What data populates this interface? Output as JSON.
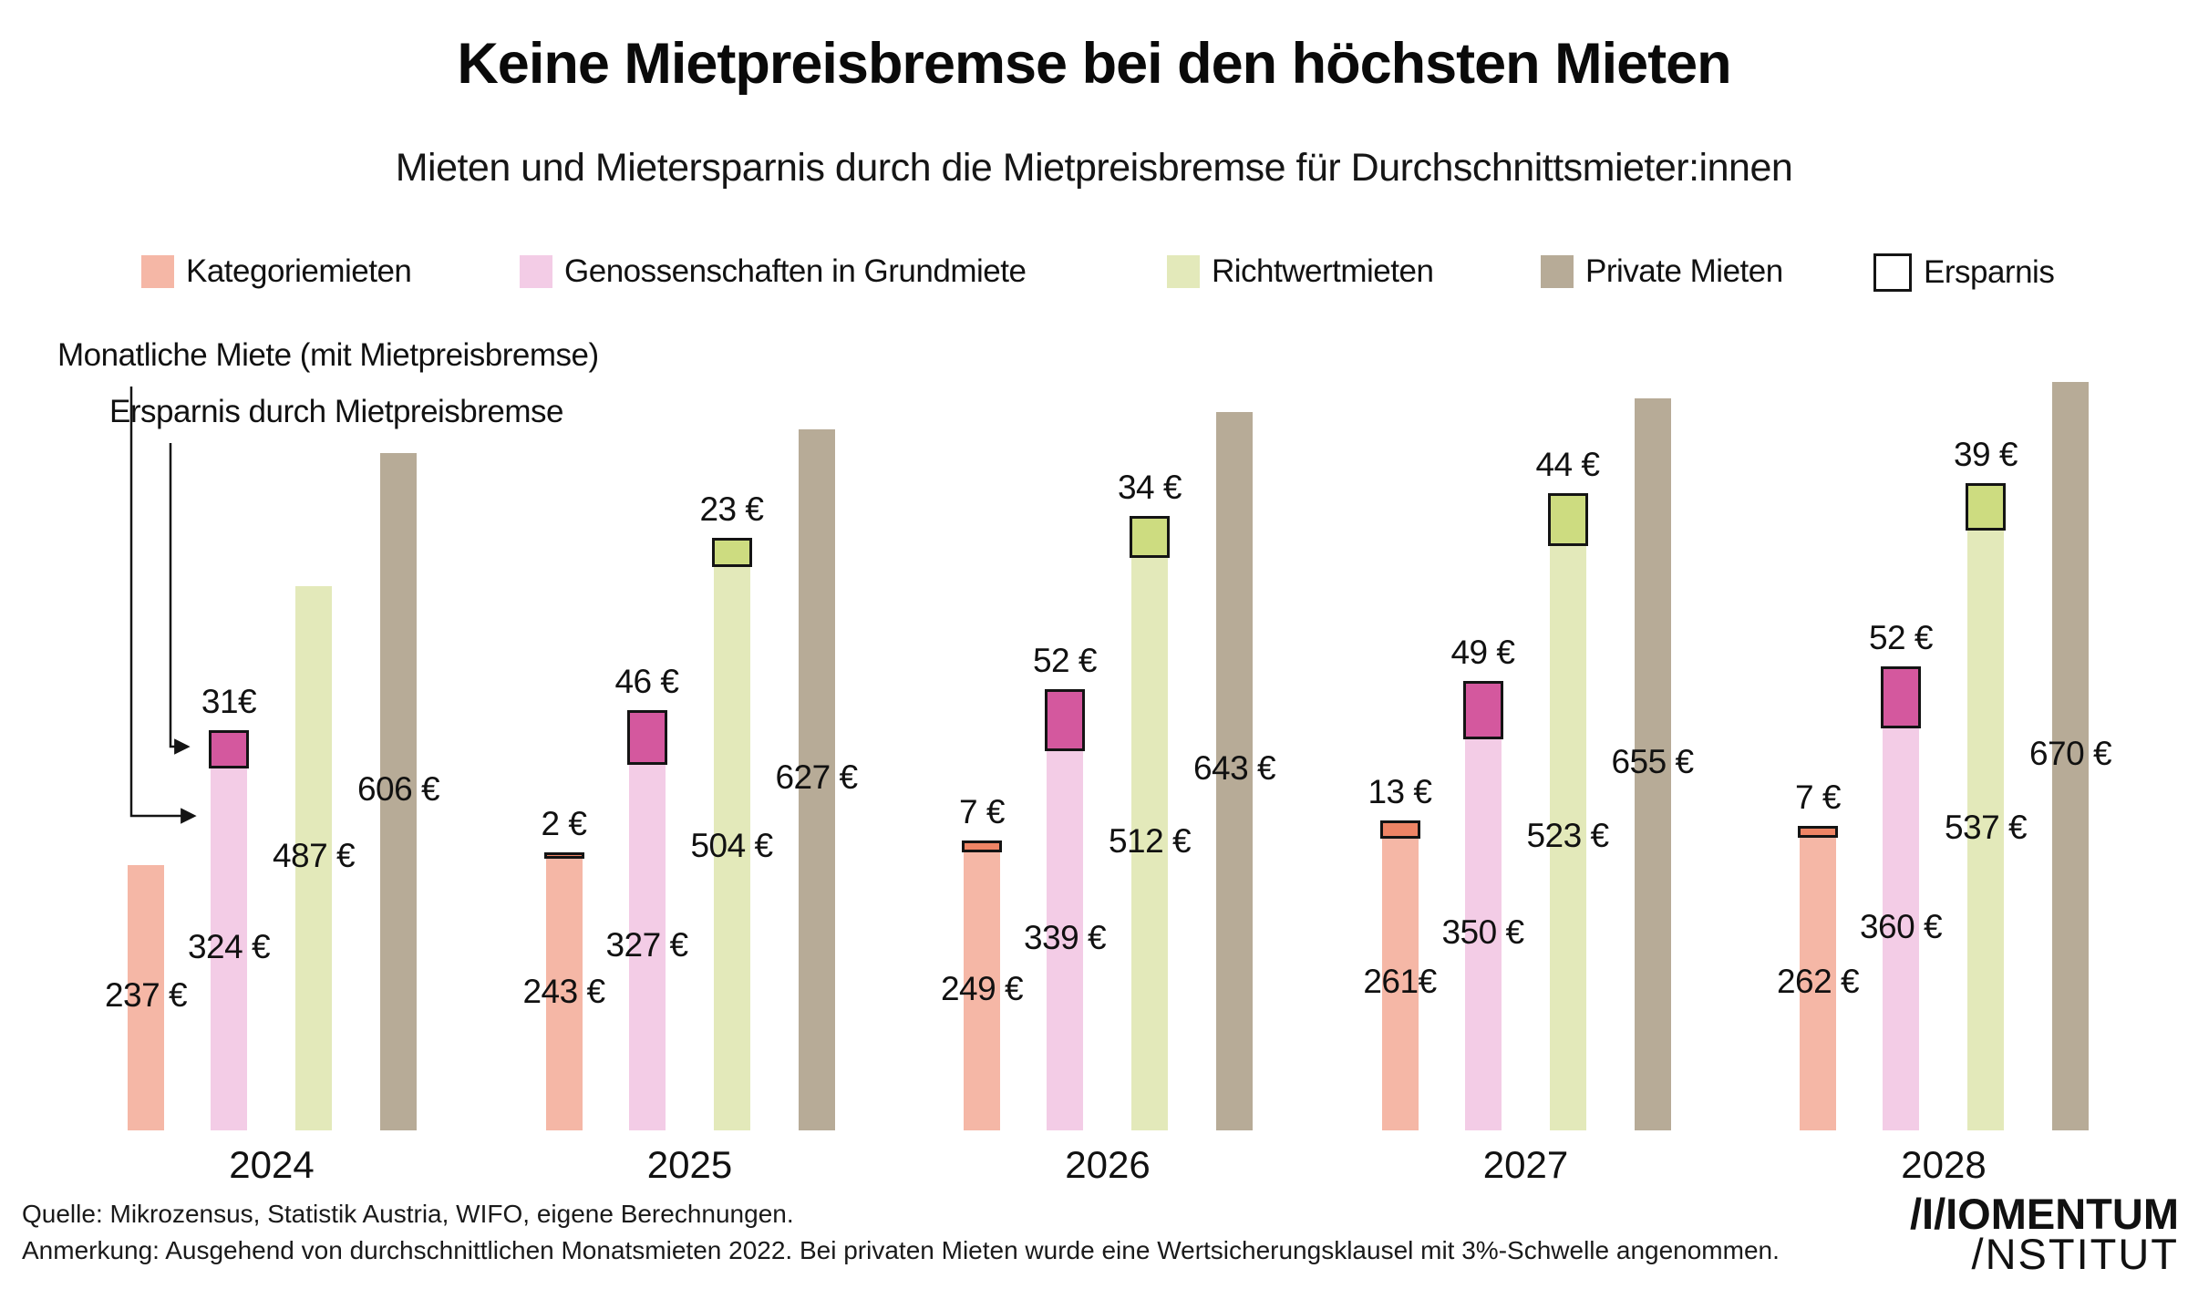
{
  "title": "Keine Mietpreisbremse bei den höchsten Mieten",
  "subtitle": "Mieten und Mietersparnis durch die Mietpreisbremse für Durchschnittsmieter:innen",
  "legend": [
    {
      "label": "Kategoriemieten",
      "color": "#f5b7a6",
      "border": null
    },
    {
      "label": "Genossenschaften in Grundmiete",
      "color": "#f3cce6",
      "border": null
    },
    {
      "label": "Richtwertmieten",
      "color": "#e3e9ba",
      "border": null
    },
    {
      "label": "Private Mieten",
      "color": "#b7ab97",
      "border": null
    },
    {
      "label": "Ersparnis",
      "color": "#ffffff",
      "border": "#141414"
    }
  ],
  "annotations": {
    "monthly_rent": "Monatliche Miete (mit Mietpreisbremse)",
    "savings": "Ersparnis durch Mietpreisbremse"
  },
  "chart_data": {
    "type": "bar",
    "title": "Keine Mietpreisbremse bei den höchsten Mieten",
    "unit": "EUR/Monat",
    "categories": [
      "2024",
      "2025",
      "2026",
      "2027",
      "2028"
    ],
    "layout": {
      "axes": "none",
      "gridlines": false,
      "value_labels": "direct-on-bars",
      "legend_position": "top"
    },
    "series": [
      {
        "name": "Kategoriemieten",
        "color": "#f5b7a6",
        "savings_color": "#ee8465",
        "values": [
          237,
          243,
          249,
          261,
          262
        ],
        "value_labels": [
          "237 €",
          "243 €",
          "249 €",
          "261€",
          "262 €"
        ],
        "savings": [
          null,
          2,
          7,
          13,
          7
        ],
        "savings_labels": [
          null,
          "2 €",
          "7 €",
          "13 €",
          "7 €"
        ]
      },
      {
        "name": "Genossenschaften in Grundmiete",
        "color": "#f3cce6",
        "savings_color": "#d4589e",
        "values": [
          324,
          327,
          339,
          350,
          360
        ],
        "value_labels": [
          "324 €",
          "327 €",
          "339 €",
          "350 €",
          "360 €"
        ],
        "savings": [
          31,
          46,
          52,
          49,
          52
        ],
        "savings_labels": [
          "31€",
          "46 €",
          "52 €",
          "49 €",
          "52 €"
        ]
      },
      {
        "name": "Richtwertmieten",
        "color": "#e3e9ba",
        "savings_color": "#cddc80",
        "values": [
          487,
          504,
          512,
          523,
          537
        ],
        "value_labels": [
          "487 €",
          "504 €",
          "512 €",
          "523 €",
          "537 €"
        ],
        "savings": [
          null,
          23,
          34,
          44,
          39
        ],
        "savings_labels": [
          null,
          "23 €",
          "34 €",
          "44 €",
          "39 €"
        ]
      },
      {
        "name": "Private Mieten",
        "color": "#b7ab97",
        "savings_color": null,
        "values": [
          606,
          627,
          643,
          655,
          670
        ],
        "value_labels": [
          "606 €",
          "627 €",
          "643 €",
          "655 €",
          "670 €"
        ],
        "savings": [
          null,
          null,
          null,
          null,
          null
        ],
        "savings_labels": [
          null,
          null,
          null,
          null,
          null
        ]
      }
    ]
  },
  "footer": {
    "source": "Quelle: Mikrozensus, Statistik Austria, WIFO, eigene Berechnungen.",
    "note": "Anmerkung: Ausgehend von durchschnittlichen Monatsmieten 2022. Bei privaten Mieten wurde eine Wertsicherungsklausel mit 3%-Schwelle angenommen."
  },
  "logo": {
    "line1": "/I/IOMENTUM",
    "line2": "/NSTITUT"
  }
}
